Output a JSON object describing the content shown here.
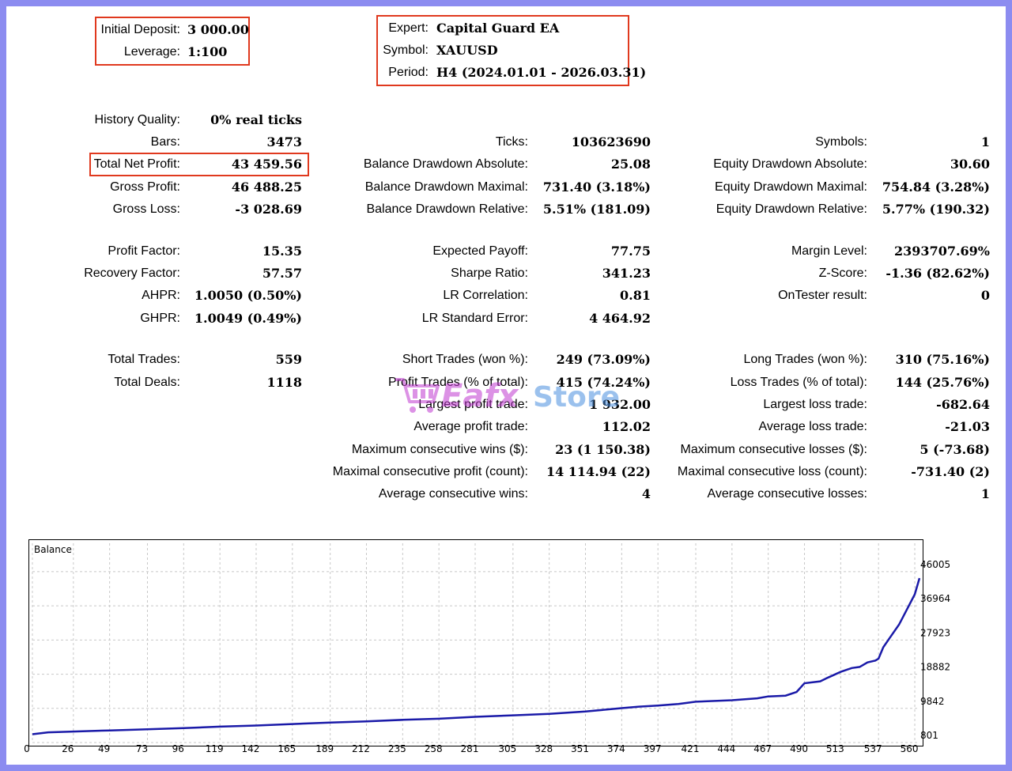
{
  "header": {
    "initial_deposit_label": "Initial Deposit:",
    "initial_deposit_value": "3 000.00",
    "leverage_label": "Leverage:",
    "leverage_value": "1:100",
    "expert_label": "Expert:",
    "expert_value": "Capital Guard EA",
    "symbol_label": "Symbol:",
    "symbol_value": "XAUUSD",
    "period_label": "Period:",
    "period_value": "H4 (2024.01.01 - 2026.03.31)"
  },
  "col1": {
    "history_quality": {
      "label": "History Quality:",
      "value": "0% real ticks"
    },
    "bars": {
      "label": "Bars:",
      "value": "3473"
    },
    "total_net_profit": {
      "label": "Total Net Profit:",
      "value": "43 459.56"
    },
    "gross_profit": {
      "label": "Gross Profit:",
      "value": "46 488.25"
    },
    "gross_loss": {
      "label": "Gross Loss:",
      "value": "-3 028.69"
    },
    "profit_factor": {
      "label": "Profit Factor:",
      "value": "15.35"
    },
    "recovery_factor": {
      "label": "Recovery Factor:",
      "value": "57.57"
    },
    "ahpr": {
      "label": "AHPR:",
      "value": "1.0050 (0.50%)"
    },
    "ghpr": {
      "label": "GHPR:",
      "value": "1.0049 (0.49%)"
    },
    "total_trades": {
      "label": "Total Trades:",
      "value": "559"
    },
    "total_deals": {
      "label": "Total Deals:",
      "value": "1118"
    }
  },
  "col2": {
    "ticks": {
      "label": "Ticks:",
      "value": "103623690"
    },
    "balance_dd_abs": {
      "label": "Balance Drawdown Absolute:",
      "value": "25.08"
    },
    "balance_dd_max": {
      "label": "Balance Drawdown Maximal:",
      "value": "731.40 (3.18%)"
    },
    "balance_dd_rel": {
      "label": "Balance Drawdown Relative:",
      "value": "5.51% (181.09)"
    },
    "expected_payoff": {
      "label": "Expected Payoff:",
      "value": "77.75"
    },
    "sharpe_ratio": {
      "label": "Sharpe Ratio:",
      "value": "341.23"
    },
    "lr_correlation": {
      "label": "LR Correlation:",
      "value": "0.81"
    },
    "lr_std_error": {
      "label": "LR Standard Error:",
      "value": "4 464.92"
    },
    "short_trades": {
      "label": "Short Trades (won %):",
      "value": "249 (73.09%)"
    },
    "profit_trades": {
      "label": "Profit Trades (% of total):",
      "value": "415 (74.24%)"
    },
    "largest_profit": {
      "label": "Largest profit trade:",
      "value": "1 932.00"
    },
    "average_profit": {
      "label": "Average profit trade:",
      "value": "112.02"
    },
    "max_consec_wins": {
      "label": "Maximum consecutive wins ($):",
      "value": "23 (1 150.38)"
    },
    "maximal_consec_profit": {
      "label": "Maximal consecutive profit (count):",
      "value": "14 114.94 (22)"
    },
    "avg_consec_wins": {
      "label": "Average consecutive wins:",
      "value": "4"
    }
  },
  "col3": {
    "symbols": {
      "label": "Symbols:",
      "value": "1"
    },
    "equity_dd_abs": {
      "label": "Equity Drawdown Absolute:",
      "value": "30.60"
    },
    "equity_dd_max": {
      "label": "Equity Drawdown Maximal:",
      "value": "754.84 (3.28%)"
    },
    "equity_dd_rel": {
      "label": "Equity Drawdown Relative:",
      "value": "5.77% (190.32)"
    },
    "margin_level": {
      "label": "Margin Level:",
      "value": "2393707.69%"
    },
    "z_score": {
      "label": "Z-Score:",
      "value": "-1.36 (82.62%)"
    },
    "ontester": {
      "label": "OnTester result:",
      "value": "0"
    },
    "long_trades": {
      "label": "Long Trades (won %):",
      "value": "310 (75.16%)"
    },
    "loss_trades": {
      "label": "Loss Trades (% of total):",
      "value": "144 (25.76%)"
    },
    "largest_loss": {
      "label": "Largest loss trade:",
      "value": "-682.64"
    },
    "average_loss": {
      "label": "Average loss trade:",
      "value": "-21.03"
    },
    "max_consec_losses": {
      "label": "Maximum consecutive losses ($):",
      "value": "5 (-73.68)"
    },
    "maximal_consec_loss": {
      "label": "Maximal consecutive loss (count):",
      "value": "-731.40 (2)"
    },
    "avg_consec_losses": {
      "label": "Average consecutive losses:",
      "value": "1"
    }
  },
  "watermark": {
    "part1": "Eafx",
    "part2": "Store"
  },
  "colors": {
    "highlight_box": "#e0391e",
    "balance_line": "#1a1aa8",
    "frame": "#8c8cf0"
  },
  "chart_data": {
    "type": "line",
    "title": "Balance",
    "x_ticks": [
      0,
      26,
      49,
      73,
      96,
      119,
      142,
      165,
      189,
      212,
      235,
      258,
      281,
      305,
      328,
      351,
      374,
      397,
      421,
      444,
      467,
      490,
      513,
      537,
      560
    ],
    "y_ticks": [
      801,
      9842,
      18882,
      27923,
      36964,
      46005
    ],
    "xlim": [
      0,
      563
    ],
    "ylim": [
      801,
      48500
    ],
    "grid": true,
    "series": [
      {
        "x": [
          0,
          10,
          26,
          49,
          73,
          96,
          119,
          142,
          165,
          189,
          212,
          235,
          258,
          281,
          305,
          328,
          351,
          374,
          385,
          397,
          410,
          421,
          444,
          460,
          467,
          478,
          485,
          490,
          500,
          505,
          513,
          520,
          525,
          530,
          535,
          537,
          540,
          545,
          550,
          555,
          560,
          563
        ],
        "y": [
          3000,
          3500,
          3700,
          4000,
          4300,
          4600,
          5000,
          5300,
          5700,
          6100,
          6400,
          6800,
          7100,
          7600,
          8000,
          8400,
          9000,
          9900,
          10300,
          10600,
          11000,
          11600,
          12000,
          12500,
          13000,
          13200,
          14200,
          16500,
          17000,
          18000,
          19500,
          20500,
          20800,
          22000,
          22500,
          23000,
          26000,
          29000,
          32000,
          36000,
          40000,
          44300
        ]
      }
    ]
  }
}
